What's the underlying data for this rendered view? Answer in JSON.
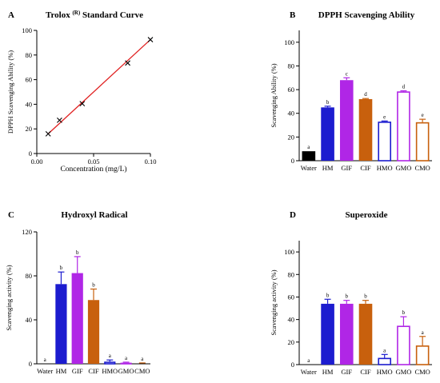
{
  "chart_data": [
    {
      "id": "A",
      "panel_label": "A",
      "title": "Trolox",
      "title_superscript": "(R)",
      "title_suffix": "Standard Curve",
      "type": "scatter",
      "xlabel": "Concentration (mg/L)",
      "ylabel": "DPPH Scavenging Ability (%)",
      "xlim": [
        0,
        0.1
      ],
      "ylim": [
        0,
        100
      ],
      "xticks": [
        "0.00",
        "0.05",
        "0.10"
      ],
      "xtick_values": [
        0,
        0.05,
        0.1
      ],
      "yticks": [
        "0",
        "20",
        "40",
        "60",
        "80",
        "100"
      ],
      "ytick_values": [
        0,
        20,
        40,
        60,
        80,
        100
      ],
      "points": [
        {
          "x": 0.01,
          "y": 16
        },
        {
          "x": 0.02,
          "y": 27
        },
        {
          "x": 0.04,
          "y": 40.5
        },
        {
          "x": 0.08,
          "y": 73.5
        },
        {
          "x": 0.1,
          "y": 92.5
        }
      ],
      "fit_line": {
        "x": [
          0.01,
          0.1
        ],
        "y": [
          16,
          92.5
        ],
        "color": "#e02020"
      },
      "marker": "x"
    },
    {
      "id": "B",
      "panel_label": "B",
      "title": "DPPH Scavenging Ability",
      "type": "bar",
      "xlabel": "",
      "ylabel": "Scavenging Ability (%)",
      "ylim": [
        0,
        110
      ],
      "yticks": [
        "0",
        "20",
        "40",
        "60",
        "80",
        "100"
      ],
      "ytick_values": [
        0,
        20,
        40,
        60,
        80,
        100
      ],
      "categories": [
        "Water",
        "HM",
        "GIF",
        "CIF",
        "HMO",
        "GMO",
        "CMO"
      ],
      "values": [
        8,
        45,
        68,
        52,
        33,
        58.5,
        32.5
      ],
      "errors": [
        0,
        1,
        2,
        0.5,
        0.5,
        0.5,
        2.5
      ],
      "letters": [
        "a",
        "b",
        "c",
        "d",
        "e",
        "d",
        "e"
      ]
    },
    {
      "id": "C",
      "panel_label": "C",
      "title": "Hydroxyl Radical",
      "type": "bar",
      "xlabel": "",
      "ylabel": "Scavenging activity (%)",
      "ylim": [
        0,
        120
      ],
      "yticks": [
        "0",
        "40",
        "80",
        "120"
      ],
      "ytick_values": [
        0,
        40,
        80,
        120
      ],
      "categories": [
        "Water",
        "HM",
        "GIF",
        "CIF",
        "HMO",
        "GMO",
        "CMO"
      ],
      "values": [
        0,
        72.5,
        82.5,
        58,
        2,
        1,
        0.5
      ],
      "errors": [
        0,
        11,
        15,
        10,
        1.5,
        0.5,
        0.3
      ],
      "letters": [
        "a",
        "b",
        "b",
        "b",
        "a",
        "a",
        "a"
      ]
    },
    {
      "id": "D",
      "panel_label": "D",
      "title": "Superoxide",
      "type": "bar",
      "xlabel": "",
      "ylabel": "Scavenging activity (%)",
      "ylim": [
        0,
        110
      ],
      "yticks": [
        "0",
        "20",
        "40",
        "60",
        "80",
        "100"
      ],
      "ytick_values": [
        0,
        20,
        40,
        60,
        80,
        100
      ],
      "categories": [
        "Water",
        "HM",
        "GIF",
        "CIF",
        "HMO",
        "GMO",
        "CMO"
      ],
      "values": [
        0,
        54,
        54,
        54,
        6,
        34.5,
        17
      ],
      "errors": [
        0,
        4,
        3,
        3,
        3,
        8,
        8
      ],
      "letters": [
        "a",
        "b",
        "b",
        "b",
        "a",
        "b",
        "a"
      ]
    }
  ],
  "bar_styles": [
    {
      "category": "Water",
      "color": "#000000",
      "filled": true
    },
    {
      "category": "HM",
      "color": "#1c1ccf",
      "filled": true
    },
    {
      "category": "GIF",
      "color": "#b026e6",
      "filled": true
    },
    {
      "category": "CIF",
      "color": "#c8600d",
      "filled": true
    },
    {
      "category": "HMO",
      "color": "#1c1ccf",
      "filled": false
    },
    {
      "category": "GMO",
      "color": "#b026e6",
      "filled": false
    },
    {
      "category": "CMO",
      "color": "#c8600d",
      "filled": false
    }
  ]
}
